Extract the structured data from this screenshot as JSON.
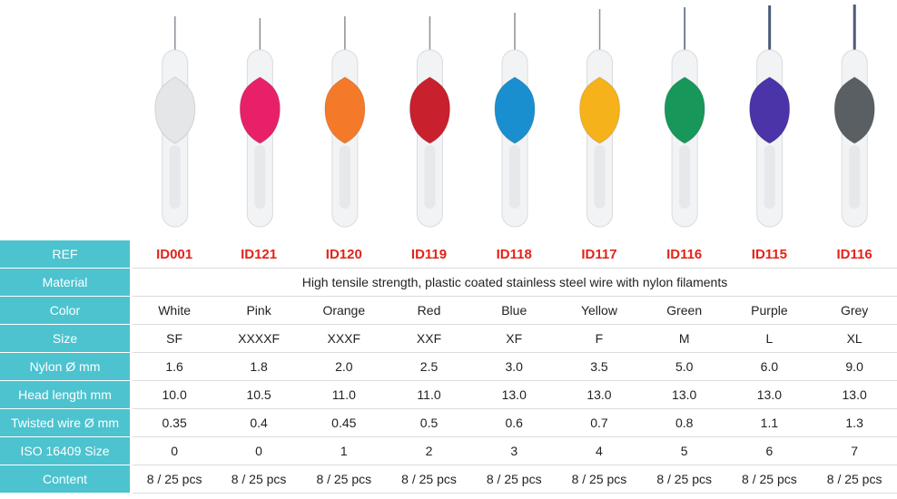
{
  "table": {
    "header": {
      "label": "REF",
      "cells": [
        "ID001",
        "ID121",
        "ID120",
        "ID119",
        "ID118",
        "ID117",
        "ID116",
        "ID115",
        "ID116"
      ]
    },
    "material": {
      "label": "Material",
      "text": "High tensile strength, plastic coated stainless steel wire with nylon filaments"
    },
    "rows": [
      {
        "label": "Color",
        "cells": [
          "White",
          "Pink",
          "Orange",
          "Red",
          "Blue",
          "Yellow",
          "Green",
          "Purple",
          "Grey"
        ]
      },
      {
        "label": "Size",
        "cells": [
          "SF",
          "XXXXF",
          "XXXF",
          "XXF",
          "XF",
          "F",
          "M",
          "L",
          "XL"
        ]
      },
      {
        "label": "Nylon Ø mm",
        "cells": [
          "1.6",
          "1.8",
          "2.0",
          "2.5",
          "3.0",
          "3.5",
          "5.0",
          "6.0",
          "9.0"
        ]
      },
      {
        "label": "Head length mm",
        "cells": [
          "10.0",
          "10.5",
          "11.0",
          "11.0",
          "13.0",
          "13.0",
          "13.0",
          "13.0",
          "13.0"
        ]
      },
      {
        "label": "Twisted wire Ø mm",
        "cells": [
          "0.35",
          "0.4",
          "0.45",
          "0.5",
          "0.6",
          "0.7",
          "0.8",
          "1.1",
          "1.3"
        ]
      },
      {
        "label": "ISO 16409 Size",
        "cells": [
          "0",
          "0",
          "1",
          "2",
          "3",
          "4",
          "5",
          "6",
          "7"
        ]
      },
      {
        "label": "Content",
        "cells": [
          "8 / 25 pcs",
          "8 / 25 pcs",
          "8 / 25 pcs",
          "8 / 25 pcs",
          "8 / 25 pcs",
          "8 / 25 pcs",
          "8 / 25 pcs",
          "8 / 25 pcs",
          "8 / 25 pcs"
        ]
      }
    ]
  }
}
